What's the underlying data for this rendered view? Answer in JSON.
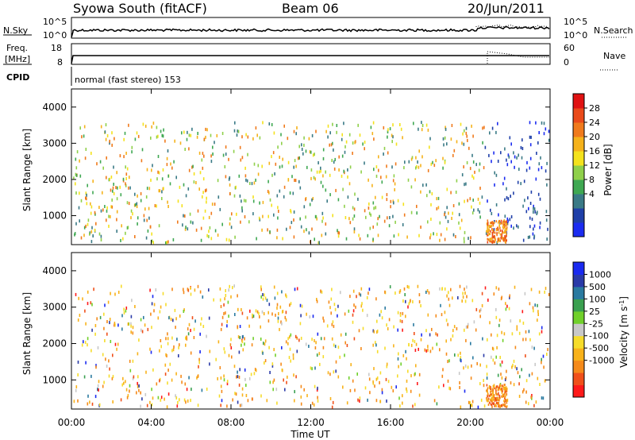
{
  "header": {
    "title": "Syowa South (fitACF)",
    "beam": "Beam 06",
    "date": "20/Jun/2011"
  },
  "noise_panel": {
    "left_label": "N.Sky",
    "right_label": "N.Search",
    "left_ticks": [
      "10^5",
      "10^0"
    ],
    "right_ticks": [
      "10^5",
      "10^0"
    ]
  },
  "freq_panel": {
    "left_label_1": "Freq.",
    "left_label_2": "[MHz]",
    "right_label": "Nave",
    "left_ticks": [
      "18",
      "8"
    ],
    "right_ticks": [
      "60",
      "0"
    ]
  },
  "cpid": {
    "label": "CPID",
    "text": "normal (fast stereo) 153"
  },
  "x_axis": {
    "label": "Time UT",
    "ticks": [
      "00:00",
      "04:00",
      "08:00",
      "12:00",
      "16:00",
      "20:00",
      "00:00"
    ]
  },
  "chart_data": [
    {
      "type": "heatmap",
      "name": "power",
      "ylabel": "Slant Range [km]",
      "y_ticks": [
        "1000",
        "2000",
        "3000",
        "4000"
      ],
      "ylim": [
        200,
        4500
      ],
      "xlim": [
        0,
        24
      ],
      "colorbar": {
        "label": "Power [dB]",
        "ticks": [
          "28",
          "24",
          "20",
          "16",
          "12",
          "8",
          "4"
        ],
        "colors": [
          "#1b2cf0",
          "#1f3fa8",
          "#3a7a86",
          "#3fa852",
          "#8fd04a",
          "#f4e21c",
          "#f5b21b",
          "#f07a1c",
          "#ea4a1a",
          "#e01212"
        ]
      }
    },
    {
      "type": "heatmap",
      "name": "velocity",
      "ylabel": "Slant Range [km]",
      "y_ticks": [
        "1000",
        "2000",
        "3000",
        "4000"
      ],
      "ylim": [
        200,
        4500
      ],
      "xlim": [
        0,
        24
      ],
      "colorbar": {
        "label": "Velocity [m s",
        "label_sup": "-1",
        "label_end": "]",
        "ticks": [
          "1000",
          "500",
          "100",
          "25",
          "-25",
          "-100",
          "-500",
          "-1000"
        ],
        "colors": [
          "#ff1a1a",
          "#f0501a",
          "#f58a1a",
          "#f8b21a",
          "#f6dc2a",
          "#c8c8c8",
          "#70d02a",
          "#3aa050",
          "#2a7aa0",
          "#2a3aa8",
          "#1a2af0"
        ]
      }
    }
  ]
}
